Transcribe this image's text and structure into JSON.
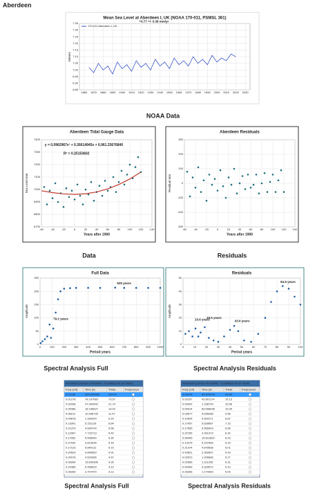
{
  "page": {
    "heading": "Aberdeen",
    "captions": [
      "NOAA Data",
      "Data",
      "Residuals",
      "Spectral Analysis Full",
      "Spectral Analysis Residuals",
      "Spectral Analysis Full",
      "Spectral Analysis Residuals"
    ]
  },
  "chart_data": [
    {
      "type": "line",
      "title": "Mean Sea Level at Aberdeen I, UK (NOAA 170-011, PSMSL 361)",
      "ylabel": "Meters",
      "annotations": [
        "+0.77 +/- 0.38 mm/yr"
      ],
      "xlim": [
        1855,
        2035
      ],
      "xticks": [
        1860,
        1870,
        1880,
        1890,
        1900,
        1910,
        1920,
        1930,
        1940,
        1950,
        1960,
        1970,
        1980,
        1990,
        2000,
        2010,
        2020,
        2030
      ],
      "ylim": [
        6.85,
        7.35
      ],
      "yticks": [
        6.85,
        {
          "value": 6.9,
          "label": "6.90"
        },
        6.95,
        {
          "value": 7,
          "label": "7.00"
        },
        7.05,
        {
          "value": 7.1,
          "label": "7.10"
        },
        7.15,
        {
          "value": 7.2,
          "label": "7.20"
        },
        7.25,
        {
          "value": 7.3,
          "label": "7.30"
        },
        7.35
      ],
      "grid": true,
      "series": [
        {
          "name": "170-011 Aberdeen I, UK",
          "color": "#3a55c8",
          "x": [
            1865,
            1870,
            1875,
            1880,
            1885,
            1890,
            1895,
            1900,
            1905,
            1910,
            1915,
            1920,
            1925,
            1930,
            1935,
            1940,
            1945,
            1950,
            1955,
            1960,
            1965,
            1970,
            1975,
            1980,
            1985,
            1990,
            1995,
            2000,
            2005,
            2010,
            2015,
            2020
          ],
          "values": [
            7.02,
            6.98,
            7.05,
            7.0,
            7.03,
            6.97,
            7.06,
            7.01,
            7.04,
            6.99,
            7.07,
            7.02,
            7.05,
            7.0,
            7.08,
            7.03,
            7.06,
            7.01,
            7.09,
            7.04,
            7.07,
            7.03,
            7.1,
            7.05,
            7.08,
            7.04,
            7.11,
            7.06,
            7.09,
            7.07,
            7.12,
            7.1
          ]
        }
      ]
    },
    {
      "type": "scatter",
      "title": "Aberdeen Tidal Gauge Data",
      "ylabel": "Sea Level mm",
      "xlabel": "Years after 1900",
      "annotations": [
        "y = 0.0962967x² + 0.26614945x + 6,961.33676840",
        "R² = 0.25153602"
      ],
      "xlim": [
        -60,
        140
      ],
      "xticks": [
        -60,
        -40,
        -20,
        0,
        20,
        40,
        60,
        80,
        100,
        120,
        140
      ],
      "ylim": [
        6700,
        7400
      ],
      "yticks": [
        6700,
        6800,
        6900,
        7000,
        7100,
        7200,
        7300,
        7400
      ],
      "grid": true,
      "series": [
        {
          "color": "#1f6f7a",
          "x": [
            -55,
            -50,
            -45,
            -40,
            -35,
            -30,
            -25,
            -20,
            -15,
            -10,
            -5,
            0,
            5,
            10,
            15,
            20,
            25,
            30,
            35,
            40,
            45,
            50,
            55,
            60,
            65,
            70,
            75,
            80,
            85,
            90,
            95,
            100,
            105,
            110,
            115,
            120
          ],
          "values": [
            7020,
            6880,
            6990,
            6930,
            7050,
            6900,
            6970,
            6860,
            7010,
            6940,
            6990,
            6920,
            7040,
            6950,
            6880,
            7000,
            6960,
            7060,
            6910,
            6980,
            7030,
            6950,
            7070,
            6990,
            7020,
            7100,
            6980,
            7060,
            7150,
            7040,
            7120,
            7200,
            7090,
            7180,
            7260,
            7140
          ]
        },
        {
          "color": "#c0392b",
          "line": true,
          "x": [
            -60,
            -40,
            -20,
            0,
            20,
            40,
            60,
            80,
            100,
            120
          ],
          "values": [
            6990,
            6975,
            6965,
            6961,
            6966,
            6980,
            7005,
            7040,
            7085,
            7140
          ]
        }
      ]
    },
    {
      "type": "scatter",
      "title": "Aberdeen Residuals",
      "ylabel": "Residual mm",
      "xlabel": "Years after 1900",
      "xlim": [
        -60,
        140
      ],
      "xticks": [
        -60,
        -40,
        -20,
        0,
        20,
        40,
        60,
        80,
        100,
        120,
        140
      ],
      "ylim": [
        -300,
        300
      ],
      "yticks": [
        -300,
        -200,
        -100,
        0,
        100,
        200,
        300
      ],
      "grid": true,
      "series": [
        {
          "color": "#1f6f7a",
          "x": [
            -55,
            -50,
            -45,
            -40,
            -35,
            -30,
            -25,
            -20,
            -15,
            -10,
            -5,
            0,
            5,
            10,
            15,
            20,
            25,
            30,
            35,
            40,
            45,
            50,
            55,
            60,
            65,
            70,
            75,
            80,
            85,
            90,
            95,
            100,
            105,
            110,
            115,
            120
          ],
          "values": [
            80,
            -90,
            40,
            -30,
            110,
            -60,
            20,
            -120,
            60,
            -10,
            30,
            -50,
            90,
            -20,
            -100,
            40,
            -10,
            100,
            -70,
            0,
            50,
            -40,
            60,
            -30,
            -10,
            60,
            -70,
            0,
            70,
            -60,
            10,
            60,
            -60,
            20,
            90,
            -60
          ]
        }
      ]
    },
    {
      "type": "scatter",
      "title": "Full Data",
      "ylabel": "Amplitude",
      "xlabel": "Period years",
      "annotations": [
        "79.2 years",
        "625 years"
      ],
      "xlim": [
        0,
        1000
      ],
      "xticks": [
        0,
        100,
        200,
        300,
        400,
        500,
        600,
        700,
        800,
        900,
        1000
      ],
      "ylim": [
        0,
        250
      ],
      "yticks": [
        0,
        50,
        100,
        150,
        200,
        250
      ],
      "grid": true,
      "series": [
        {
          "color": "#1f5fa0",
          "x": [
            5,
            20,
            40,
            60,
            79.2,
            90,
            110,
            130,
            150,
            170,
            200,
            250,
            300,
            400,
            500,
            625,
            700,
            800,
            900,
            1000
          ],
          "values": [
            5,
            12,
            20,
            30,
            75,
            25,
            60,
            120,
            170,
            200,
            210,
            212,
            213,
            213,
            213,
            214,
            213,
            213,
            213,
            213
          ]
        }
      ]
    },
    {
      "type": "scatter",
      "title": "Residuals",
      "ylabel": "Amplitude",
      "xlabel": "Period years",
      "annotations": [
        "10.6 years",
        "18.5 years",
        "43.6 years",
        "84.9 years"
      ],
      "xlim": [
        0,
        100
      ],
      "xticks": [
        0,
        10,
        20,
        30,
        40,
        50,
        60,
        70,
        80,
        90,
        100
      ],
      "ylim": [
        0,
        50
      ],
      "yticks": [
        0,
        10,
        20,
        30,
        40,
        50
      ],
      "grid": true,
      "series": [
        {
          "color": "#1f5fa0",
          "x": [
            2,
            5,
            8,
            10.6,
            13,
            15,
            18.5,
            22,
            26,
            30,
            35,
            40,
            43.6,
            47,
            52,
            58,
            64,
            70,
            75,
            80,
            84.9,
            90,
            95,
            100
          ],
          "values": [
            8,
            10,
            6,
            12,
            6,
            9,
            13,
            5,
            3,
            2,
            6,
            11,
            14,
            10,
            3,
            2,
            8,
            20,
            32,
            40,
            44,
            42,
            36,
            30
          ]
        }
      ]
    }
  ],
  "tables": [
    {
      "title": "Prominent periods of PeriWin - CLEANest #1 for Oksfil...",
      "columns": [
        "Freq (c/d)",
        "Time (d)",
        "Theta",
        "FreqCursor"
      ],
      "rows": [
        [
          "0.01165",
          "525.295460",
          "204.57"
        ],
        [
          "0.01278",
          "78.197083",
          "73.57"
        ],
        [
          "0.02008",
          "47.904442",
          "21.74"
        ],
        [
          "0.05486",
          "18.196627",
          "13.02"
        ],
        [
          "0.08211",
          "10.936725",
          "11.47"
        ],
        [
          "0.04678",
          "1.169249",
          "9.20"
        ],
        [
          "0.13301",
          "5.151129",
          "6.84"
        ],
        [
          "0.21379",
          "4.690704",
          "5.68"
        ],
        [
          "0.12967",
          "7.723713",
          "5.40"
        ],
        [
          "0.17062",
          "5.598400",
          "5.30"
        ],
        [
          "0.27032",
          "3.613935",
          "5.16"
        ],
        [
          "0.17123",
          "5.840112",
          "5.15"
        ],
        [
          "0.20529",
          "4.845063",
          "4.91"
        ],
        [
          "0.20078",
          "4.529396",
          "4.67"
        ],
        [
          "0.06264",
          "15.640306",
          "4.26"
        ],
        [
          "0.15485",
          "6.458029",
          "4.10"
        ],
        [
          "0.26264",
          "3.797470",
          "4.13"
        ]
      ]
    },
    {
      "title": "Prominent periods of PeriWin - CLEANest #1 for Oksfil...",
      "columns": [
        "Freq (c/d)",
        "Time (d)",
        "Theta",
        "FreqCursor"
      ],
      "rows": [
        [
          "0.00178",
          "84.875023",
          "30.69"
        ],
        [
          "0.02337",
          "42.801174",
          "15.13"
        ],
        [
          "0.00902",
          "1.158734",
          "10.56"
        ],
        [
          "0.00514",
          "83.508435",
          "10.34"
        ],
        [
          "0.03577",
          "5.635288",
          "9.56"
        ],
        [
          "0.10524",
          "9.502271",
          "8.87"
        ],
        [
          "0.17057",
          "5.628587",
          "7.15"
        ],
        [
          "0.17655",
          "5.565903",
          "6.56"
        ],
        [
          "0.22765",
          "4.391373",
          "6.32"
        ],
        [
          "0.06405",
          "15.611829",
          "6.29"
        ],
        [
          "0.13275",
          "5.157965",
          "6.15"
        ],
        [
          "0.21374",
          "4.678538",
          "6.01"
        ],
        [
          "0.43521",
          "2.352897",
          "5.43"
        ],
        [
          "0.02573",
          "1.206666",
          "5.27"
        ],
        [
          "0.02566",
          "1.211295",
          "5.31"
        ],
        [
          "0.00906",
          "3.329572",
          "5.10"
        ],
        [
          "0.26266",
          "1.170069",
          "5.04"
        ]
      ]
    }
  ]
}
